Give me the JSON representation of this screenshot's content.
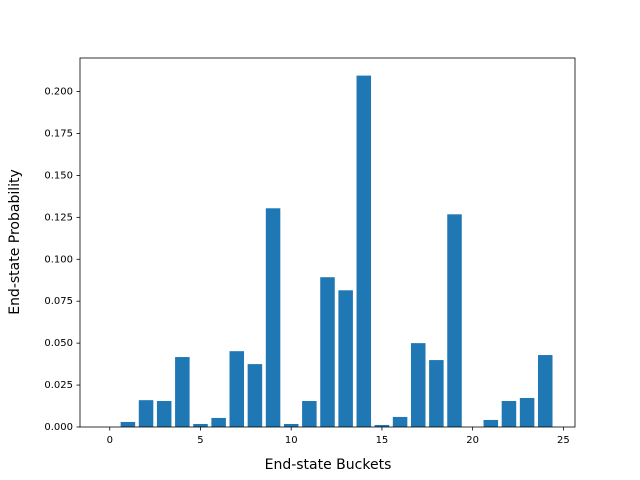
{
  "chart_data": {
    "type": "bar",
    "xlabel": "End-state Buckets",
    "ylabel": "End-state Probability",
    "x": [
      0,
      1,
      2,
      3,
      4,
      5,
      6,
      7,
      8,
      9,
      10,
      11,
      12,
      13,
      14,
      15,
      16,
      17,
      18,
      19,
      20,
      21,
      22,
      23,
      24
    ],
    "values": [
      0,
      0.003,
      0.016,
      0.0155,
      0.0417,
      0.0018,
      0.0054,
      0.0452,
      0.0375,
      0.1304,
      0.0018,
      0.0155,
      0.0893,
      0.0815,
      0.2095,
      0.0012,
      0.006,
      0.05,
      0.0399,
      0.1268,
      0,
      0.0042,
      0.0155,
      0.0173,
      0.0429
    ],
    "bar_width": 0.8,
    "color": "#1f77b4",
    "xlim": [
      -1.64,
      25.64
    ],
    "xticks": [
      0,
      5,
      10,
      15,
      20,
      25
    ],
    "ylim": [
      0,
      0.22
    ],
    "yticks": [
      {
        "value": 0,
        "label": "0.000"
      },
      {
        "value": 0.025,
        "label": "0.025"
      },
      {
        "value": 0.05,
        "label": "0.050"
      },
      {
        "value": 0.075,
        "label": "0.075"
      },
      {
        "value": 0.1,
        "label": "0.100"
      },
      {
        "value": 0.125,
        "label": "0.125"
      },
      {
        "value": 0.15,
        "label": "0.150"
      },
      {
        "value": 0.175,
        "label": "0.175"
      },
      {
        "value": 0.2,
        "label": "0.200"
      }
    ]
  }
}
